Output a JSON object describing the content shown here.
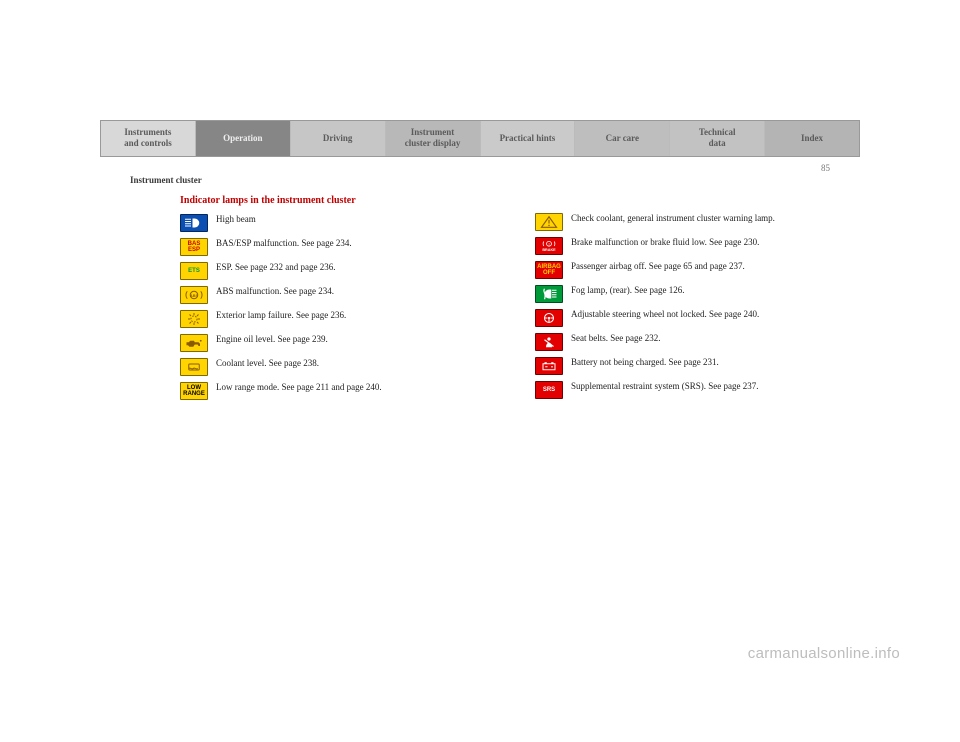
{
  "nav": [
    "Instruments\nand controls",
    "Operation",
    "Driving",
    "Instrument\ncluster display",
    "Practical hints",
    "Car care",
    "Technical\ndata",
    "Index"
  ],
  "pageNumber": "85",
  "sectionLabel": "Instrument cluster",
  "heading": "Indicator lamps in the instrument cluster",
  "leftItems": [
    {
      "label": "",
      "bg": "#0b4fb3",
      "svg": "highbeam",
      "text": "High beam"
    },
    {
      "label": "BAS\nESP",
      "bg": "#ffd400",
      "fg": "#cc0000",
      "text": "BAS/ESP malfunction. See page 234."
    },
    {
      "label": "ETS",
      "bg": "#ffd400",
      "fg": "#009a3b",
      "text": "ESP. See page 232 and page 236."
    },
    {
      "label": "",
      "bg": "#ffd400",
      "svg": "abs",
      "svgColor": "#8a5a00",
      "text": "ABS malfunction. See page 234."
    },
    {
      "label": "",
      "bg": "#ffd400",
      "svg": "lampfail",
      "svgColor": "#8a5a00",
      "text": "Exterior lamp failure. See page 236."
    },
    {
      "label": "",
      "bg": "#ffd400",
      "svg": "oil",
      "svgColor": "#8a5a00",
      "text": "Engine oil level. See page 239."
    },
    {
      "label": "",
      "bg": "#ffd400",
      "svg": "coolant",
      "svgColor": "#8a5a00",
      "text": "Coolant level. See page 238."
    },
    {
      "label": "LOW\nRANGE",
      "bg": "#ffd400",
      "fg": "#000000",
      "text": "Low range mode. See page 211 and page 240."
    }
  ],
  "rightItems": [
    {
      "label": "",
      "bg": "#ffd400",
      "svg": "warning",
      "svgColor": "#8a5a00",
      "text": "Check coolant, general instrument cluster warning lamp."
    },
    {
      "label": "BRAKE",
      "bg": "#e20000",
      "fg": "#ffffff",
      "svg": "brake",
      "text": "Brake malfunction or brake fluid low. See page 230."
    },
    {
      "label": "AIRBAG\nOFF",
      "bg": "#e20000",
      "fg": "#ffd400",
      "text": "Passenger airbag off. See page 65 and page 237."
    },
    {
      "label": "",
      "bg": "#009a3b",
      "svg": "foglamp",
      "text": "Fog lamp, (rear). See page 126."
    },
    {
      "label": "",
      "bg": "#e20000",
      "svg": "steering",
      "text": "Adjustable steering wheel not locked. See page 240."
    },
    {
      "label": "",
      "bg": "#e20000",
      "svg": "seatbelt",
      "text": "Seat belts. See page 232."
    },
    {
      "label": "",
      "bg": "#e20000",
      "svg": "battery",
      "text": "Battery not being charged. See page 231."
    },
    {
      "label": "SRS",
      "bg": "#e20000",
      "fg": "#ffffff",
      "text": "Supplemental restraint system (SRS). See page 237."
    }
  ],
  "watermark": "carmanualsonline.info"
}
